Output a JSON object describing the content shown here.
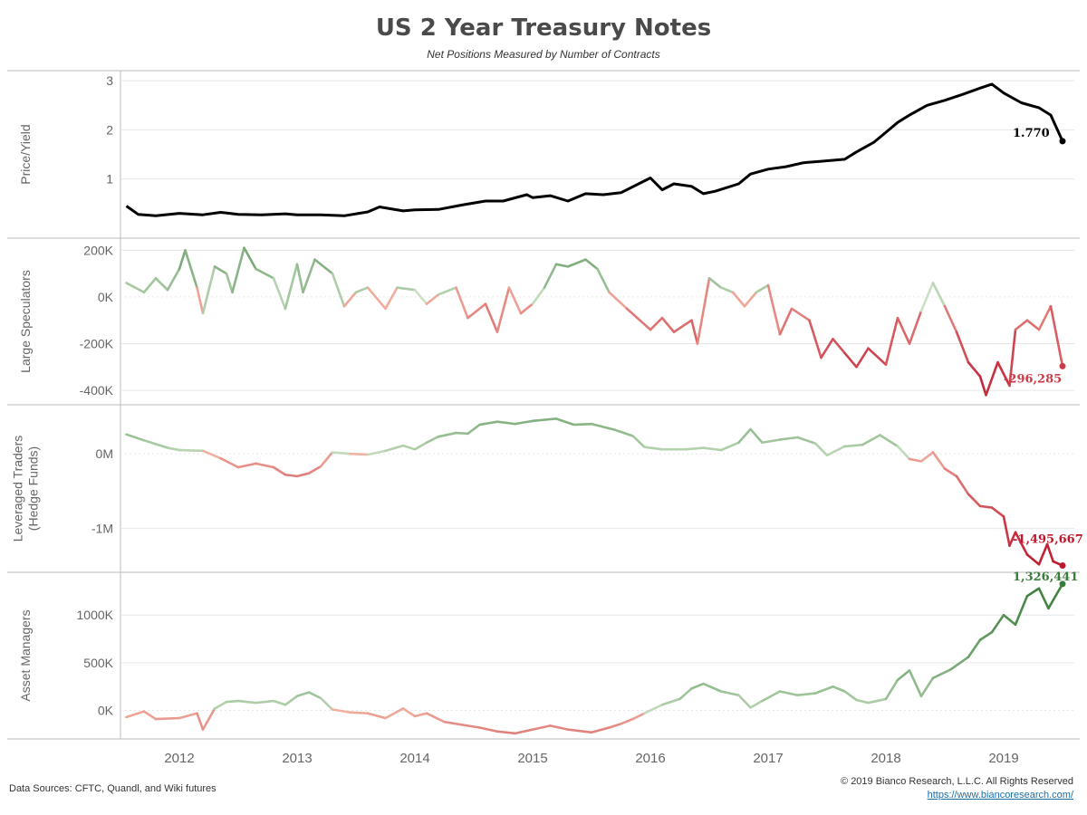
{
  "header": {
    "title": "US 2 Year Treasury Notes",
    "subtitle": "Net Positions Measured by Number of Contracts"
  },
  "footer": {
    "source": "Data Sources: CFTC, Quandl, and Wiki futures",
    "copyright": "© 2019 Bianco Research, L.L.C. All Rights Reserved",
    "url": "https://www.biancoresearch.com/"
  },
  "colors": {
    "price_line": "#000000",
    "positive_strong": "#3a7d3a",
    "positive_light": "#c9e0c2",
    "negative_light": "#f3b8a6",
    "negative_strong": "#c0182e",
    "gridline": "#e6e6e6",
    "divider": "#bbbbbb"
  },
  "chart_data": {
    "type": "line",
    "x_axis": {
      "tick_labels": [
        "2012",
        "2013",
        "2014",
        "2015",
        "2016",
        "2017",
        "2018",
        "2019"
      ],
      "range": [
        2011.5,
        2019.6
      ]
    },
    "panels": [
      {
        "ylabel": "Price/Yield",
        "yticks": [
          1,
          2,
          3
        ],
        "ytick_labels": [
          "1",
          "2",
          "3"
        ],
        "ylim": [
          -0.15,
          3.15
        ],
        "color_mode": "solid",
        "end_label": "1.770",
        "points": [
          [
            2011.55,
            0.45
          ],
          [
            2011.65,
            0.28
          ],
          [
            2011.8,
            0.25
          ],
          [
            2012.0,
            0.3
          ],
          [
            2012.2,
            0.27
          ],
          [
            2012.35,
            0.32
          ],
          [
            2012.5,
            0.28
          ],
          [
            2012.7,
            0.27
          ],
          [
            2012.9,
            0.29
          ],
          [
            2013.0,
            0.27
          ],
          [
            2013.2,
            0.27
          ],
          [
            2013.4,
            0.25
          ],
          [
            2013.6,
            0.33
          ],
          [
            2013.7,
            0.43
          ],
          [
            2013.9,
            0.35
          ],
          [
            2014.0,
            0.37
          ],
          [
            2014.2,
            0.38
          ],
          [
            2014.4,
            0.47
          ],
          [
            2014.6,
            0.55
          ],
          [
            2014.75,
            0.55
          ],
          [
            2014.95,
            0.68
          ],
          [
            2015.0,
            0.62
          ],
          [
            2015.15,
            0.66
          ],
          [
            2015.3,
            0.55
          ],
          [
            2015.45,
            0.7
          ],
          [
            2015.6,
            0.68
          ],
          [
            2015.75,
            0.72
          ],
          [
            2015.9,
            0.9
          ],
          [
            2016.0,
            1.02
          ],
          [
            2016.1,
            0.78
          ],
          [
            2016.2,
            0.9
          ],
          [
            2016.35,
            0.85
          ],
          [
            2016.45,
            0.7
          ],
          [
            2016.55,
            0.75
          ],
          [
            2016.75,
            0.9
          ],
          [
            2016.85,
            1.1
          ],
          [
            2017.0,
            1.2
          ],
          [
            2017.15,
            1.25
          ],
          [
            2017.3,
            1.33
          ],
          [
            2017.45,
            1.36
          ],
          [
            2017.55,
            1.38
          ],
          [
            2017.65,
            1.4
          ],
          [
            2017.75,
            1.55
          ],
          [
            2017.9,
            1.75
          ],
          [
            2018.0,
            1.95
          ],
          [
            2018.1,
            2.15
          ],
          [
            2018.2,
            2.3
          ],
          [
            2018.35,
            2.5
          ],
          [
            2018.5,
            2.6
          ],
          [
            2018.65,
            2.72
          ],
          [
            2018.8,
            2.85
          ],
          [
            2018.9,
            2.93
          ],
          [
            2019.0,
            2.75
          ],
          [
            2019.15,
            2.55
          ],
          [
            2019.3,
            2.45
          ],
          [
            2019.4,
            2.3
          ],
          [
            2019.5,
            1.77
          ]
        ]
      },
      {
        "ylabel": "Large Speculators",
        "yticks": [
          -400000,
          -200000,
          0,
          200000
        ],
        "ytick_labels": [
          "-400K",
          "-200K",
          "0K",
          "200K"
        ],
        "ylim": [
          -450000,
          240000
        ],
        "color_mode": "diverging",
        "color_range": 450000,
        "end_label": "-296,285",
        "points": [
          [
            2011.55,
            60000
          ],
          [
            2011.7,
            20000
          ],
          [
            2011.8,
            80000
          ],
          [
            2011.9,
            30000
          ],
          [
            2012.0,
            120000
          ],
          [
            2012.05,
            200000
          ],
          [
            2012.15,
            40000
          ],
          [
            2012.2,
            -70000
          ],
          [
            2012.3,
            130000
          ],
          [
            2012.4,
            100000
          ],
          [
            2012.45,
            20000
          ],
          [
            2012.55,
            210000
          ],
          [
            2012.65,
            120000
          ],
          [
            2012.8,
            80000
          ],
          [
            2012.9,
            -50000
          ],
          [
            2013.0,
            140000
          ],
          [
            2013.05,
            20000
          ],
          [
            2013.15,
            160000
          ],
          [
            2013.3,
            100000
          ],
          [
            2013.4,
            -40000
          ],
          [
            2013.5,
            20000
          ],
          [
            2013.6,
            40000
          ],
          [
            2013.75,
            -50000
          ],
          [
            2013.85,
            40000
          ],
          [
            2014.0,
            30000
          ],
          [
            2014.1,
            -30000
          ],
          [
            2014.2,
            10000
          ],
          [
            2014.35,
            40000
          ],
          [
            2014.45,
            -90000
          ],
          [
            2014.6,
            -30000
          ],
          [
            2014.7,
            -150000
          ],
          [
            2014.8,
            40000
          ],
          [
            2014.9,
            -70000
          ],
          [
            2015.0,
            -30000
          ],
          [
            2015.1,
            40000
          ],
          [
            2015.2,
            140000
          ],
          [
            2015.3,
            130000
          ],
          [
            2015.45,
            160000
          ],
          [
            2015.55,
            120000
          ],
          [
            2015.65,
            20000
          ],
          [
            2015.8,
            -50000
          ],
          [
            2016.0,
            -140000
          ],
          [
            2016.1,
            -90000
          ],
          [
            2016.2,
            -150000
          ],
          [
            2016.35,
            -100000
          ],
          [
            2016.4,
            -200000
          ],
          [
            2016.5,
            80000
          ],
          [
            2016.6,
            40000
          ],
          [
            2016.7,
            20000
          ],
          [
            2016.8,
            -40000
          ],
          [
            2016.9,
            20000
          ],
          [
            2017.0,
            50000
          ],
          [
            2017.1,
            -160000
          ],
          [
            2017.2,
            -50000
          ],
          [
            2017.35,
            -100000
          ],
          [
            2017.45,
            -260000
          ],
          [
            2017.55,
            -180000
          ],
          [
            2017.65,
            -240000
          ],
          [
            2017.75,
            -300000
          ],
          [
            2017.85,
            -220000
          ],
          [
            2018.0,
            -290000
          ],
          [
            2018.1,
            -90000
          ],
          [
            2018.2,
            -200000
          ],
          [
            2018.3,
            -60000
          ],
          [
            2018.4,
            60000
          ],
          [
            2018.5,
            -40000
          ],
          [
            2018.6,
            -150000
          ],
          [
            2018.7,
            -280000
          ],
          [
            2018.8,
            -340000
          ],
          [
            2018.85,
            -420000
          ],
          [
            2018.95,
            -280000
          ],
          [
            2019.05,
            -380000
          ],
          [
            2019.1,
            -140000
          ],
          [
            2019.2,
            -100000
          ],
          [
            2019.3,
            -140000
          ],
          [
            2019.4,
            -40000
          ],
          [
            2019.5,
            -296285
          ]
        ]
      },
      {
        "ylabel": "Leveraged Traders (Hedge Funds)",
        "yticks": [
          -1000000,
          0
        ],
        "ytick_labels": [
          "-1M",
          "0M"
        ],
        "ylim": [
          -1550000,
          620000
        ],
        "color_mode": "diverging",
        "color_range": 1500000,
        "end_label": "-1,495,667",
        "points": [
          [
            2011.55,
            260000
          ],
          [
            2011.7,
            180000
          ],
          [
            2011.9,
            80000
          ],
          [
            2012.0,
            50000
          ],
          [
            2012.2,
            40000
          ],
          [
            2012.35,
            -60000
          ],
          [
            2012.5,
            -180000
          ],
          [
            2012.65,
            -130000
          ],
          [
            2012.8,
            -180000
          ],
          [
            2012.9,
            -280000
          ],
          [
            2013.0,
            -300000
          ],
          [
            2013.1,
            -260000
          ],
          [
            2013.2,
            -170000
          ],
          [
            2013.3,
            20000
          ],
          [
            2013.45,
            0
          ],
          [
            2013.6,
            -10000
          ],
          [
            2013.75,
            40000
          ],
          [
            2013.9,
            110000
          ],
          [
            2014.0,
            60000
          ],
          [
            2014.1,
            150000
          ],
          [
            2014.2,
            230000
          ],
          [
            2014.35,
            280000
          ],
          [
            2014.45,
            270000
          ],
          [
            2014.55,
            390000
          ],
          [
            2014.7,
            430000
          ],
          [
            2014.85,
            400000
          ],
          [
            2015.0,
            440000
          ],
          [
            2015.2,
            470000
          ],
          [
            2015.35,
            390000
          ],
          [
            2015.5,
            400000
          ],
          [
            2015.7,
            320000
          ],
          [
            2015.85,
            240000
          ],
          [
            2015.95,
            90000
          ],
          [
            2016.1,
            60000
          ],
          [
            2016.3,
            60000
          ],
          [
            2016.45,
            80000
          ],
          [
            2016.6,
            50000
          ],
          [
            2016.75,
            150000
          ],
          [
            2016.85,
            330000
          ],
          [
            2016.95,
            150000
          ],
          [
            2017.1,
            190000
          ],
          [
            2017.25,
            220000
          ],
          [
            2017.4,
            140000
          ],
          [
            2017.5,
            -20000
          ],
          [
            2017.65,
            100000
          ],
          [
            2017.8,
            120000
          ],
          [
            2017.95,
            250000
          ],
          [
            2018.1,
            100000
          ],
          [
            2018.2,
            -70000
          ],
          [
            2018.3,
            -100000
          ],
          [
            2018.4,
            20000
          ],
          [
            2018.5,
            -200000
          ],
          [
            2018.6,
            -300000
          ],
          [
            2018.7,
            -540000
          ],
          [
            2018.8,
            -700000
          ],
          [
            2018.9,
            -720000
          ],
          [
            2019.0,
            -840000
          ],
          [
            2019.05,
            -1230000
          ],
          [
            2019.1,
            -1050000
          ],
          [
            2019.2,
            -1350000
          ],
          [
            2019.3,
            -1480000
          ],
          [
            2019.37,
            -1210000
          ],
          [
            2019.42,
            -1440000
          ],
          [
            2019.5,
            -1495667
          ]
        ]
      },
      {
        "ylabel": "Asset Managers",
        "yticks": [
          0,
          500000,
          1000000
        ],
        "ytick_labels": [
          "0K",
          "500K",
          "1000K"
        ],
        "ylim": [
          -270000,
          1420000
        ],
        "color_mode": "diverging",
        "color_range": 1330000,
        "end_label": "1,326,441",
        "points": [
          [
            2011.55,
            -70000
          ],
          [
            2011.7,
            -10000
          ],
          [
            2011.8,
            -90000
          ],
          [
            2012.0,
            -80000
          ],
          [
            2012.15,
            -30000
          ],
          [
            2012.2,
            -200000
          ],
          [
            2012.3,
            20000
          ],
          [
            2012.4,
            90000
          ],
          [
            2012.5,
            100000
          ],
          [
            2012.65,
            80000
          ],
          [
            2012.8,
            100000
          ],
          [
            2012.9,
            60000
          ],
          [
            2013.0,
            150000
          ],
          [
            2013.1,
            190000
          ],
          [
            2013.2,
            130000
          ],
          [
            2013.3,
            10000
          ],
          [
            2013.45,
            -20000
          ],
          [
            2013.6,
            -30000
          ],
          [
            2013.75,
            -80000
          ],
          [
            2013.9,
            20000
          ],
          [
            2014.0,
            -60000
          ],
          [
            2014.1,
            -30000
          ],
          [
            2014.25,
            -120000
          ],
          [
            2014.4,
            -150000
          ],
          [
            2014.55,
            -180000
          ],
          [
            2014.7,
            -220000
          ],
          [
            2014.85,
            -240000
          ],
          [
            2015.0,
            -200000
          ],
          [
            2015.15,
            -160000
          ],
          [
            2015.3,
            -200000
          ],
          [
            2015.5,
            -230000
          ],
          [
            2015.65,
            -180000
          ],
          [
            2015.75,
            -140000
          ],
          [
            2015.85,
            -90000
          ],
          [
            2015.95,
            -30000
          ],
          [
            2016.1,
            60000
          ],
          [
            2016.25,
            120000
          ],
          [
            2016.35,
            230000
          ],
          [
            2016.45,
            280000
          ],
          [
            2016.6,
            200000
          ],
          [
            2016.75,
            160000
          ],
          [
            2016.85,
            30000
          ],
          [
            2016.95,
            100000
          ],
          [
            2017.1,
            200000
          ],
          [
            2017.25,
            160000
          ],
          [
            2017.4,
            180000
          ],
          [
            2017.55,
            250000
          ],
          [
            2017.65,
            200000
          ],
          [
            2017.75,
            110000
          ],
          [
            2017.85,
            80000
          ],
          [
            2018.0,
            120000
          ],
          [
            2018.1,
            320000
          ],
          [
            2018.2,
            420000
          ],
          [
            2018.3,
            150000
          ],
          [
            2018.4,
            340000
          ],
          [
            2018.55,
            430000
          ],
          [
            2018.7,
            560000
          ],
          [
            2018.8,
            740000
          ],
          [
            2018.9,
            820000
          ],
          [
            2019.0,
            1000000
          ],
          [
            2019.1,
            900000
          ],
          [
            2019.2,
            1200000
          ],
          [
            2019.3,
            1280000
          ],
          [
            2019.38,
            1070000
          ],
          [
            2019.5,
            1326441
          ]
        ]
      }
    ]
  }
}
